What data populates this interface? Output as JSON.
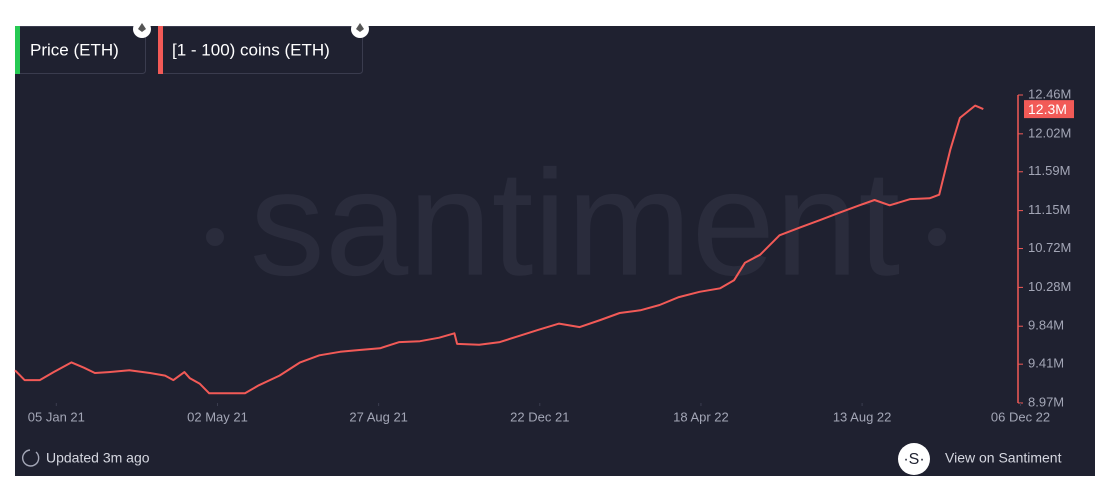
{
  "chart_data": {
    "type": "line",
    "watermark": "santiment",
    "legend_inactive": {
      "name": "Price (ETH)",
      "color": "#26c953"
    },
    "updated": "Updated 3m ago",
    "link": "View on Santiment",
    "xlim": [
      "06 Dec 20",
      "02 Dec 22"
    ],
    "xticks": [
      "05 Jan 21",
      "02 May 21",
      "27 Aug 21",
      "22 Dec 21",
      "18 Apr 22",
      "13 Aug 22",
      "06 Dec 22"
    ],
    "ylim": [
      8970000,
      12460000
    ],
    "yticks": [
      {
        "value": 12460000,
        "label": "12.46M"
      },
      {
        "value": 12020000,
        "label": "12.02M"
      },
      {
        "value": 11590000,
        "label": "11.59M"
      },
      {
        "value": 11150000,
        "label": "11.15M"
      },
      {
        "value": 10720000,
        "label": "10.72M"
      },
      {
        "value": 10280000,
        "label": "10.28M"
      },
      {
        "value": 9840000,
        "label": "9.84M"
      },
      {
        "value": 9410000,
        "label": "9.41M"
      },
      {
        "value": 8970000,
        "label": "8.97M"
      }
    ],
    "x": [
      "06 Dec 20",
      "13 Dec 20",
      "24 Dec 20",
      "03 Jan 21",
      "16 Jan 21",
      "25 Jan 21",
      "02 Feb 21",
      "12 Feb 21",
      "27 Feb 21",
      "14 Mar 21",
      "25 Mar 21",
      "31 Mar 21",
      "08 Apr 21",
      "12 Apr 21",
      "19 Apr 21",
      "26 Apr 21",
      "11 May 21",
      "22 May 21",
      "01 Jun 21",
      "16 Jun 21",
      "01 Jul 21",
      "15 Jul 21",
      "30 Jul 21",
      "13 Aug 21",
      "28 Aug 21",
      "11 Sep 21",
      "26 Sep 21",
      "10 Oct 21",
      "21 Oct 21",
      "23 Oct 21",
      "08 Nov 21",
      "23 Nov 21",
      "07 Dec 21",
      "21 Dec 21",
      "05 Jan 22",
      "20 Jan 22",
      "04 Feb 22",
      "18 Feb 22",
      "05 Mar 22",
      "19 Mar 22",
      "02 Apr 22",
      "17 Apr 22",
      "02 May 22",
      "12 May 22",
      "20 May 22",
      "31 May 22",
      "14 Jun 22",
      "29 Jun 22",
      "13 Jul 22",
      "28 Jul 22",
      "11 Aug 22",
      "22 Aug 22",
      "02 Sep 22",
      "17 Sep 22",
      "01 Oct 22",
      "08 Oct 22",
      "16 Oct 22",
      "23 Oct 22",
      "03 Nov 22",
      "09 Nov 22"
    ],
    "series": [
      {
        "name": "[1 - 100) coins (ETH)",
        "color": "#f25a57",
        "values": [
          9340000,
          9230000,
          9230000,
          9320000,
          9430000,
          9370000,
          9310000,
          9320000,
          9340000,
          9310000,
          9280000,
          9230000,
          9320000,
          9250000,
          9190000,
          9080000,
          9080000,
          9080000,
          9170000,
          9280000,
          9430000,
          9510000,
          9550000,
          9570000,
          9590000,
          9660000,
          9670000,
          9710000,
          9760000,
          9640000,
          9630000,
          9660000,
          9730000,
          9800000,
          9870000,
          9830000,
          9910000,
          9990000,
          10020000,
          10080000,
          10170000,
          10230000,
          10270000,
          10360000,
          10560000,
          10650000,
          10870000,
          10960000,
          11040000,
          11130000,
          11210000,
          11270000,
          11210000,
          11280000,
          11290000,
          11330000,
          11840000,
          12200000,
          12340000,
          12300000
        ],
        "value_labels": [
          null,
          null,
          null,
          null,
          null,
          null,
          null,
          null,
          null,
          null,
          null,
          null,
          null,
          null,
          null,
          null,
          null,
          null,
          null,
          null,
          null,
          null,
          null,
          null,
          null,
          null,
          null,
          null,
          null,
          null,
          null,
          null,
          null,
          null,
          null,
          null,
          null,
          null,
          null,
          null,
          null,
          null,
          null,
          null,
          null,
          null,
          null,
          null,
          null,
          null,
          null,
          null,
          null,
          null,
          null,
          null,
          null,
          null,
          null,
          "12.3M"
        ]
      }
    ]
  }
}
